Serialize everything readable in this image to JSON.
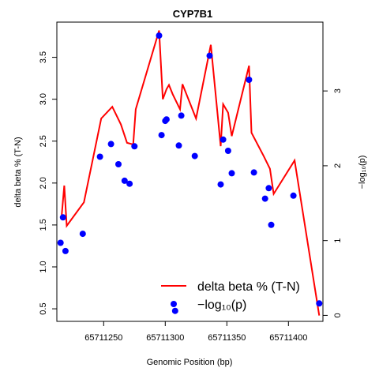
{
  "chart_data": {
    "type": "line",
    "title": "CYP7B1",
    "xlabel": "Genomic Position (bp)",
    "ylabel": "delta beta % (T-N)",
    "y2label": "−log₁₀(p)",
    "xlim": [
      65711212,
      65711428
    ],
    "ylim": [
      0.35,
      3.92
    ],
    "y2lim": [
      -0.08,
      3.92
    ],
    "x_ticks": [
      65711250,
      65711300,
      65711350,
      65711400
    ],
    "y_ticks": [
      0.5,
      1.0,
      1.5,
      2.0,
      2.5,
      3.0,
      3.5
    ],
    "y2_ticks": [
      0,
      1,
      2,
      3
    ],
    "grid": false,
    "legend_position": "bottom-right",
    "series": [
      {
        "name": "delta beta % (T-N)",
        "kind": "line",
        "axis": "left",
        "color": "#ff0000",
        "x": [
          65711216,
          65711218,
          65711220,
          65711234,
          65711248,
          65711257,
          65711264,
          65711269,
          65711274,
          65711276,
          65711295,
          65711298,
          65711301,
          65711303,
          65711306,
          65711312,
          65711314,
          65711325,
          65711337,
          65711345,
          65711347,
          65711351,
          65711354,
          65711368,
          65711370,
          65711380,
          65711385,
          65711388,
          65711405,
          65711425
        ],
        "values": [
          1.62,
          1.97,
          1.49,
          1.77,
          2.77,
          2.91,
          2.7,
          2.48,
          2.46,
          2.88,
          3.82,
          3.0,
          3.12,
          3.17,
          3.06,
          2.88,
          3.18,
          2.77,
          3.65,
          2.44,
          2.94,
          2.84,
          2.56,
          3.4,
          2.6,
          2.32,
          2.17,
          1.87,
          2.27,
          0.42
        ]
      },
      {
        "name": "−log₁₀(p)",
        "kind": "points",
        "axis": "right",
        "color": "#0000ff",
        "x": [
          65711215,
          65711217,
          65711219,
          65711233,
          65711247,
          65711256,
          65711262,
          65711267,
          65711271,
          65711275,
          65711295,
          65711297,
          65711300,
          65711301,
          65711308,
          65711311,
          65711313,
          65711324,
          65711336,
          65711345,
          65711347,
          65711351,
          65711354,
          65711368,
          65711372,
          65711381,
          65711384,
          65711386,
          65711404,
          65711425
        ],
        "values": [
          0.97,
          1.31,
          0.86,
          1.09,
          2.12,
          2.29,
          2.02,
          1.8,
          1.76,
          2.26,
          3.74,
          2.41,
          2.6,
          2.62,
          0.06,
          2.27,
          2.67,
          2.13,
          3.47,
          1.75,
          2.35,
          2.2,
          1.9,
          3.15,
          1.91,
          1.56,
          1.7,
          1.21,
          1.6,
          0.16
        ]
      }
    ]
  }
}
